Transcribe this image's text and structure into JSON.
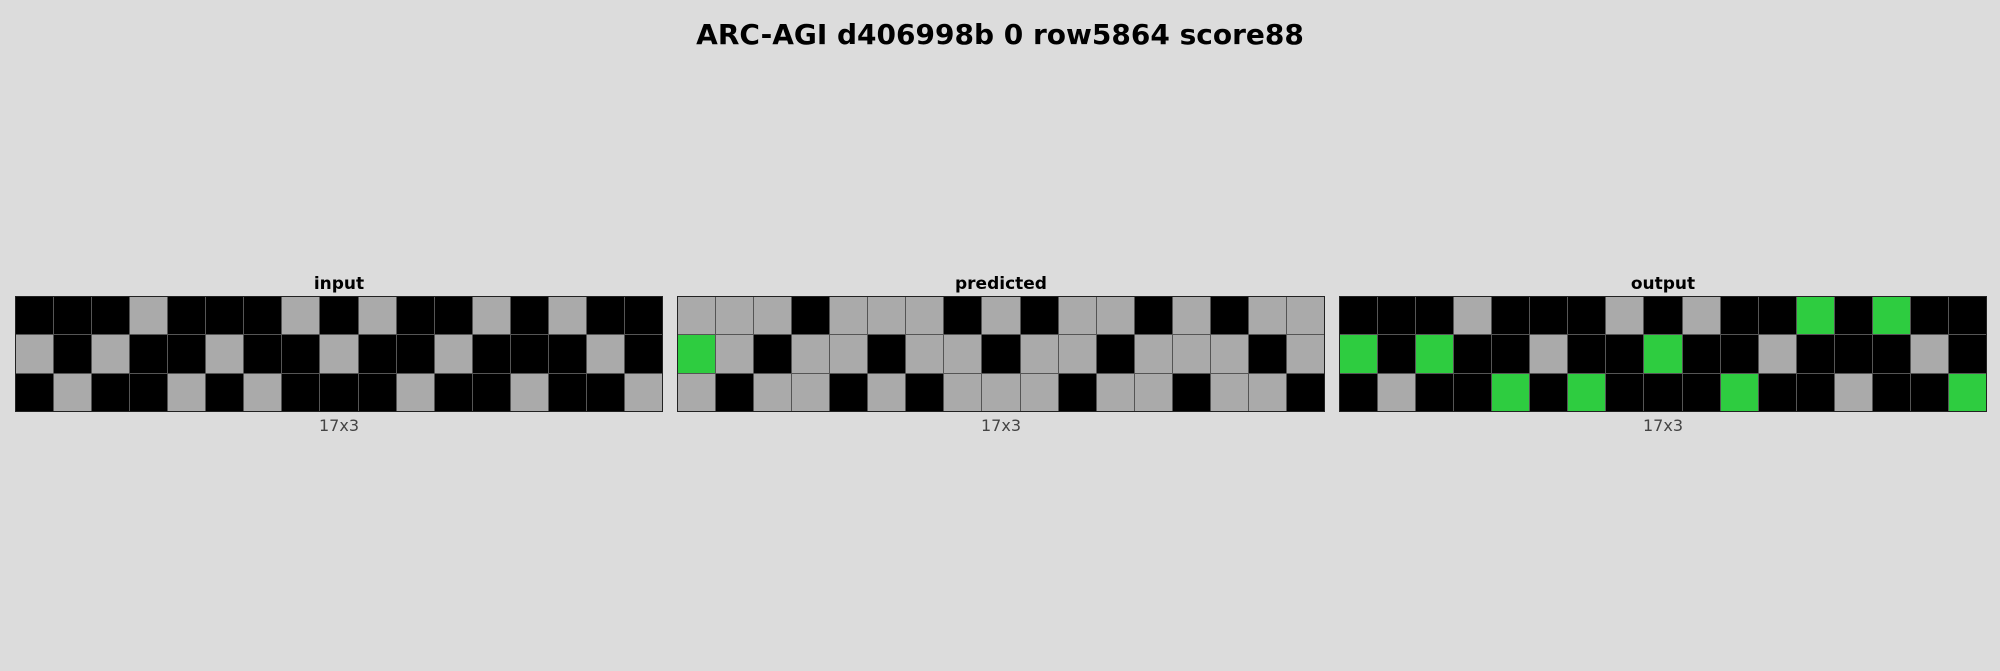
{
  "title": "ARC-AGI d406998b 0 row5864 score88",
  "colors": {
    "0": "#000000",
    "3": "#2ecc40",
    "5": "#aaaaaa"
  },
  "panels": [
    {
      "label": "input",
      "size": "17x3",
      "grid": [
        [
          0,
          0,
          0,
          5,
          0,
          0,
          0,
          5,
          0,
          5,
          0,
          0,
          5,
          0,
          5,
          0,
          0
        ],
        [
          5,
          0,
          5,
          0,
          0,
          5,
          0,
          0,
          5,
          0,
          0,
          5,
          0,
          0,
          0,
          5,
          0
        ],
        [
          0,
          5,
          0,
          0,
          5,
          0,
          5,
          0,
          0,
          0,
          5,
          0,
          0,
          5,
          0,
          0,
          5
        ]
      ]
    },
    {
      "label": "predicted",
      "size": "17x3",
      "grid": [
        [
          5,
          5,
          5,
          0,
          5,
          5,
          5,
          0,
          5,
          0,
          5,
          5,
          0,
          5,
          0,
          5,
          5
        ],
        [
          3,
          5,
          0,
          5,
          5,
          0,
          5,
          5,
          0,
          5,
          5,
          0,
          5,
          5,
          5,
          0,
          5
        ],
        [
          5,
          0,
          5,
          5,
          0,
          5,
          0,
          5,
          5,
          5,
          0,
          5,
          5,
          0,
          5,
          5,
          0
        ]
      ]
    },
    {
      "label": "output",
      "size": "17x3",
      "grid": [
        [
          0,
          0,
          0,
          5,
          0,
          0,
          0,
          5,
          0,
          5,
          0,
          0,
          3,
          0,
          3,
          0,
          0
        ],
        [
          3,
          0,
          3,
          0,
          0,
          5,
          0,
          0,
          3,
          0,
          0,
          5,
          0,
          0,
          0,
          5,
          0
        ],
        [
          0,
          5,
          0,
          0,
          3,
          0,
          3,
          0,
          0,
          0,
          3,
          0,
          0,
          5,
          0,
          0,
          3
        ]
      ]
    }
  ]
}
